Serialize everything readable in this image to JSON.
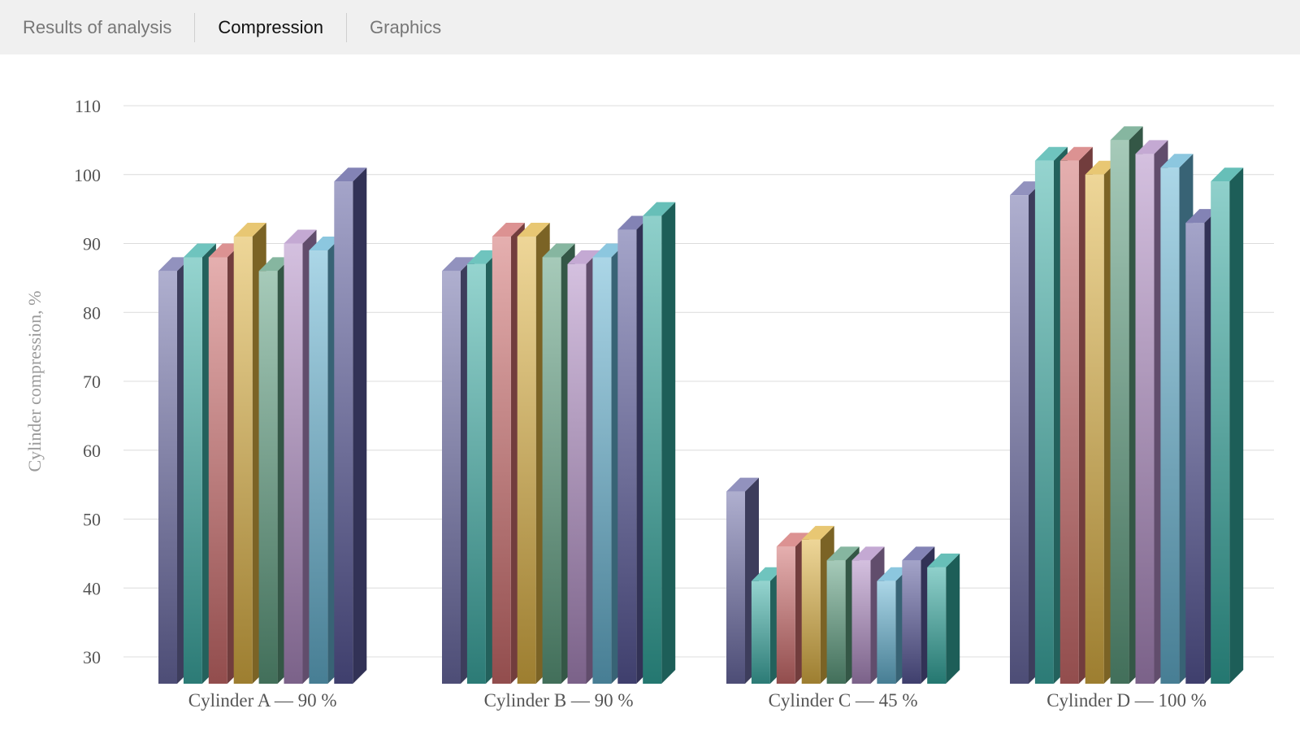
{
  "tabs": {
    "results": "Results of analysis",
    "compression": "Compression",
    "graphics": "Graphics",
    "active": "compression"
  },
  "chart_data": {
    "type": "bar",
    "ylabel": "Cylinder compression, %",
    "ylim": [
      30,
      110
    ],
    "yticks": [
      30,
      40,
      50,
      60,
      70,
      80,
      90,
      100,
      110
    ],
    "grid": true,
    "categories": [
      "Cylinder A — 90 %",
      "Cylinder B — 90 %",
      "Cylinder C — 45 %",
      "Cylinder D — 100 %"
    ],
    "series": [
      {
        "values": [
          86,
          86,
          54,
          97
        ],
        "color": "#6e6ea8"
      },
      {
        "values": [
          88,
          87,
          41,
          102
        ],
        "color": "#3fb0a8"
      },
      {
        "values": [
          88,
          91,
          46,
          102
        ],
        "color": "#d06e6e"
      },
      {
        "values": [
          91,
          91,
          47,
          100
        ],
        "color": "#e0b444"
      },
      {
        "values": [
          86,
          88,
          44,
          105
        ],
        "color": "#5e9e80"
      },
      {
        "values": [
          90,
          87,
          44,
          103
        ],
        "color": "#b08cc4"
      },
      {
        "values": [
          89,
          88,
          41,
          101
        ],
        "color": "#66b4d4"
      },
      {
        "values": [
          99,
          92,
          44,
          93
        ],
        "color": "#5a5a9c"
      },
      {
        "values": [
          null,
          94,
          43,
          99
        ],
        "color": "#34aaa0"
      }
    ]
  }
}
